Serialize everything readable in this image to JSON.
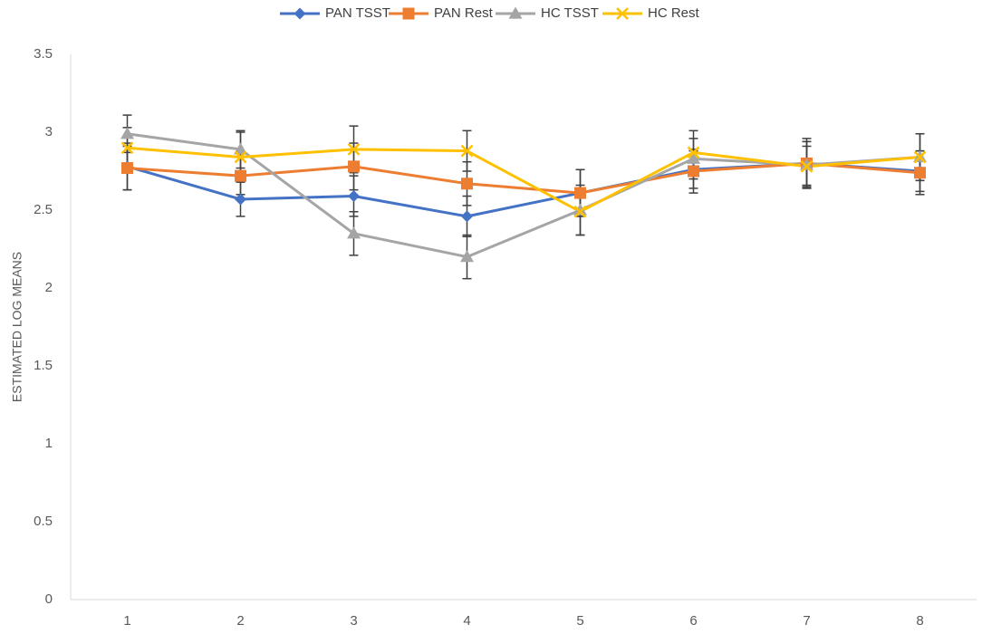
{
  "chart_data": {
    "type": "line",
    "title": "",
    "xlabel": "",
    "ylabel": "ESTIMATED LOG MEANS",
    "ylim": [
      0,
      3.5
    ],
    "y_ticks": [
      "0",
      "0.5",
      "1",
      "1.5",
      "2",
      "2.5",
      "3",
      "3.5"
    ],
    "categories": [
      "1",
      "2",
      "3",
      "4",
      "5",
      "6",
      "7",
      "8"
    ],
    "grid": false,
    "legend_position": "top-center",
    "series": [
      {
        "name": "PAN TSST",
        "color": "#4472C4",
        "marker": "diamond",
        "values": [
          2.78,
          2.57,
          2.59,
          2.46,
          2.61,
          2.76,
          2.8,
          2.75
        ],
        "errors": [
          0.15,
          0.11,
          0.13,
          0.13,
          0.15,
          0.12,
          0.14,
          0.13
        ]
      },
      {
        "name": "PAN Rest",
        "color": "#ED7D31",
        "marker": "square",
        "values": [
          2.77,
          2.72,
          2.78,
          2.67,
          2.61,
          2.75,
          2.8,
          2.74
        ],
        "errors": [
          0.14,
          0.12,
          0.15,
          0.14,
          0.15,
          0.14,
          0.16,
          0.14
        ]
      },
      {
        "name": "HC TSST",
        "color": "#A5A5A5",
        "marker": "triangle",
        "values": [
          2.99,
          2.89,
          2.35,
          2.2,
          2.5,
          2.83,
          2.79,
          2.84
        ],
        "errors": [
          0.12,
          0.12,
          0.14,
          0.14,
          0.16,
          0.13,
          0.15,
          0.15
        ]
      },
      {
        "name": "HC Rest",
        "color": "#FFC000",
        "marker": "x",
        "values": [
          2.9,
          2.84,
          2.89,
          2.88,
          2.49,
          2.87,
          2.78,
          2.84
        ],
        "errors": [
          0.13,
          0.16,
          0.15,
          0.13,
          0.15,
          0.14,
          0.13,
          0.15
        ]
      }
    ]
  }
}
